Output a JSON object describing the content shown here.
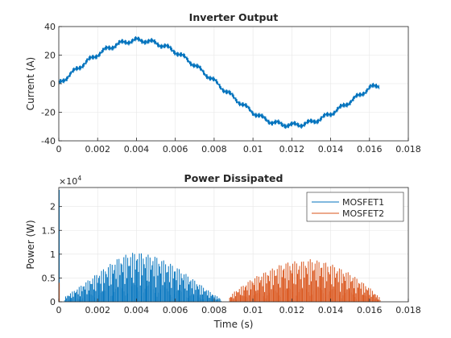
{
  "chart_data": [
    {
      "type": "line",
      "title": "Inverter Output",
      "xlabel": "",
      "ylabel": "Current (A)",
      "xlim": [
        0,
        0.018
      ],
      "ylim": [
        -40,
        40
      ],
      "x_ticks": [
        0,
        0.002,
        0.004,
        0.006,
        0.008,
        0.01,
        0.012,
        0.014,
        0.016,
        0.018
      ],
      "x_tick_labels": [
        "0",
        "0.002",
        "0.004",
        "0.006",
        "0.008",
        "0.01",
        "0.012",
        "0.014",
        "0.016",
        "0.018"
      ],
      "y_ticks": [
        -40,
        -20,
        0,
        20,
        40
      ],
      "y_tick_labels": [
        "-40",
        "-20",
        "0",
        "20",
        "40"
      ],
      "grid": true,
      "series": [
        {
          "color": "#0072BD",
          "x": [
            0,
            0.0005,
            0.001,
            0.0015,
            0.002,
            0.0025,
            0.003,
            0.0035,
            0.004,
            0.0045,
            0.005,
            0.0055,
            0.006,
            0.0065,
            0.007,
            0.0075,
            0.008,
            0.0085,
            0.009,
            0.0095,
            0.01,
            0.0105,
            0.011,
            0.0115,
            0.012,
            0.0125,
            0.013,
            0.0135,
            0.014,
            0.0145,
            0.015,
            0.0155,
            0.016,
            0.0165
          ],
          "y": [
            0,
            5.5,
            11,
            16,
            20.5,
            24.5,
            27.5,
            29.5,
            30.5,
            30,
            28.5,
            26,
            22.5,
            18,
            13,
            7.5,
            2,
            -4,
            -9.5,
            -15,
            -20,
            -24,
            -27,
            -28.5,
            -29,
            -28.5,
            -27,
            -24.5,
            -21,
            -17,
            -12.5,
            -8,
            -3,
            -1
          ]
        }
      ]
    },
    {
      "type": "bar",
      "title": "Power Dissipated",
      "xlabel": "Time (s)",
      "ylabel": "Power (W)",
      "y_exponent_label": "×10",
      "y_exponent": "4",
      "xlim": [
        0,
        0.018
      ],
      "ylim": [
        0,
        2.4
      ],
      "x_ticks": [
        0,
        0.002,
        0.004,
        0.006,
        0.008,
        0.01,
        0.012,
        0.014,
        0.016,
        0.018
      ],
      "x_tick_labels": [
        "0",
        "0.002",
        "0.004",
        "0.006",
        "0.008",
        "0.01",
        "0.012",
        "0.014",
        "0.016",
        "0.018"
      ],
      "y_ticks": [
        0,
        0.5,
        1,
        1.5,
        2
      ],
      "y_tick_labels": [
        "0",
        "0.5",
        "1",
        "1.5",
        "2"
      ],
      "grid": true,
      "legend_position": "top-right",
      "series": [
        {
          "name": "MOSFET1",
          "color": "#0072BD",
          "initial_spike": {
            "x": 0,
            "y": 2.35
          },
          "envelope_x": [
            0.0003,
            0.001,
            0.002,
            0.003,
            0.0035,
            0.004,
            0.005,
            0.006,
            0.007,
            0.0075,
            0.008,
            0.0083
          ],
          "envelope_y": [
            0.1,
            0.3,
            0.6,
            0.9,
            1.0,
            1.05,
            0.95,
            0.75,
            0.45,
            0.3,
            0.15,
            0.08
          ]
        },
        {
          "name": "MOSFET2",
          "color": "#D95319",
          "initial_spike": {
            "x": 0,
            "y": 0.4
          },
          "envelope_x": [
            0.0088,
            0.009,
            0.01,
            0.011,
            0.0115,
            0.012,
            0.0125,
            0.013,
            0.0135,
            0.014,
            0.015,
            0.016,
            0.0165
          ],
          "envelope_y": [
            0.1,
            0.2,
            0.5,
            0.7,
            0.8,
            0.85,
            0.85,
            0.9,
            0.85,
            0.8,
            0.6,
            0.3,
            0.1
          ]
        }
      ]
    }
  ]
}
